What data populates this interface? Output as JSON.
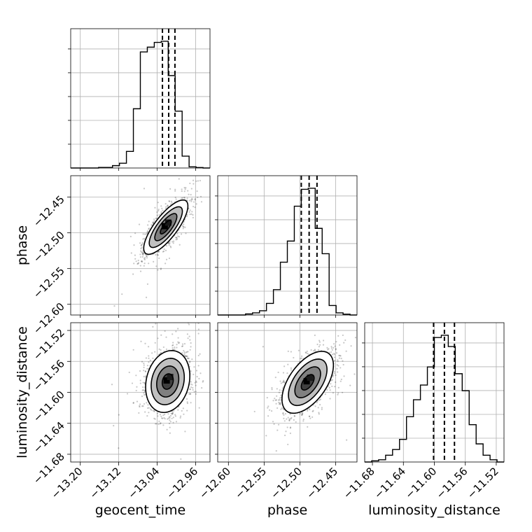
{
  "chart_data": {
    "type": "corner",
    "parameters": [
      "geocent_time",
      "phase",
      "luminosity_distance"
    ],
    "ranges": {
      "geocent_time": [
        -13.22,
        -12.93
      ],
      "phase": [
        -12.615,
        -12.42
      ],
      "luminosity_distance": [
        -11.69,
        -11.51
      ]
    },
    "ticks": {
      "geocent_time": [
        -13.2,
        -13.12,
        -13.04,
        -12.96
      ],
      "phase": [
        -12.6,
        -12.55,
        -12.5,
        -12.45
      ],
      "luminosity_distance": [
        -11.68,
        -11.64,
        -11.6,
        -11.56,
        -11.52
      ]
    },
    "tick_labels": {
      "geocent_time": [
        "−13.20",
        "−13.12",
        "−13.04",
        "−12.96"
      ],
      "phase": [
        "−12.60",
        "−12.55",
        "−12.50",
        "−12.45"
      ],
      "luminosity_distance": [
        "−11.68",
        "−11.64",
        "−11.60",
        "−11.56",
        "−11.52"
      ]
    },
    "axis_labels": {
      "x_bottom": [
        "geocent_time",
        "phase",
        "luminosity_distance"
      ],
      "y_left": [
        "phase",
        "luminosity_distance"
      ]
    },
    "quantiles": {
      "geocent_time": [
        -13.029,
        -13.016,
        -13.003
      ],
      "phase": [
        -12.498,
        -12.487,
        -12.476
      ],
      "luminosity_distance": [
        -11.601,
        -11.587,
        -11.574
      ]
    },
    "histograms": {
      "geocent_time": {
        "edges": [
          -13.22,
          -13.2055,
          -13.191,
          -13.1765,
          -13.162,
          -13.1475,
          -13.133,
          -13.1185,
          -13.104,
          -13.0895,
          -13.075,
          -13.0605,
          -13.046,
          -13.0315,
          -13.017,
          -13.0025,
          -12.988,
          -12.9735,
          -12.959,
          -12.9445,
          -12.93
        ],
        "counts": [
          0,
          0,
          0,
          0,
          0.5,
          0.5,
          2,
          4,
          14,
          50,
          98,
          102,
          106,
          107,
          78,
          48,
          10,
          1,
          0.4,
          0
        ]
      },
      "phase": {
        "edges": [
          -12.615,
          -12.60525,
          -12.5955,
          -12.58575,
          -12.576,
          -12.56625,
          -12.5565,
          -12.54675,
          -12.537,
          -12.52725,
          -12.5175,
          -12.50775,
          -12.498,
          -12.48825,
          -12.4785,
          -12.46875,
          -12.459,
          -12.44925,
          -12.4395,
          -12.42975,
          -12.42
        ],
        "counts": [
          0,
          0,
          0,
          0,
          1,
          2,
          4,
          11,
          24,
          50,
          70,
          103,
          119,
          120,
          82,
          58,
          9,
          2,
          0.8,
          0
        ]
      },
      "luminosity_distance": {
        "edges": [
          -11.69,
          -11.681,
          -11.672,
          -11.663,
          -11.654,
          -11.645,
          -11.636,
          -11.627,
          -11.618,
          -11.609,
          -11.6,
          -11.591,
          -11.582,
          -11.573,
          -11.564,
          -11.555,
          -11.546,
          -11.537,
          -11.528,
          -11.519,
          -11.51
        ],
        "counts": [
          0,
          1,
          2,
          6,
          11,
          20,
          40,
          55,
          68,
          84,
          110,
          112,
          102,
          78,
          63,
          33,
          16,
          6,
          2,
          0
        ]
      }
    },
    "joint_2d": [
      {
        "x": "geocent_time",
        "y": "phase",
        "center": [
          -13.022,
          -12.492
        ],
        "sigma": [
          0.023,
          0.019
        ],
        "correlation": 0.78,
        "levels_sigma": [
          0.5,
          1.0,
          1.5,
          2.0
        ]
      },
      {
        "x": "geocent_time",
        "y": "luminosity_distance",
        "center": [
          -13.018,
          -11.586
        ],
        "sigma": [
          0.023,
          0.02
        ],
        "correlation": 0.18,
        "levels_sigma": [
          0.5,
          1.0,
          1.5,
          2.0
        ]
      },
      {
        "x": "phase",
        "y": "luminosity_distance",
        "center": [
          -12.489,
          -11.587
        ],
        "sigma": [
          0.018,
          0.02
        ],
        "correlation": 0.55,
        "levels_sigma": [
          0.5,
          1.0,
          1.5,
          2.0
        ]
      }
    ],
    "grid": true
  }
}
